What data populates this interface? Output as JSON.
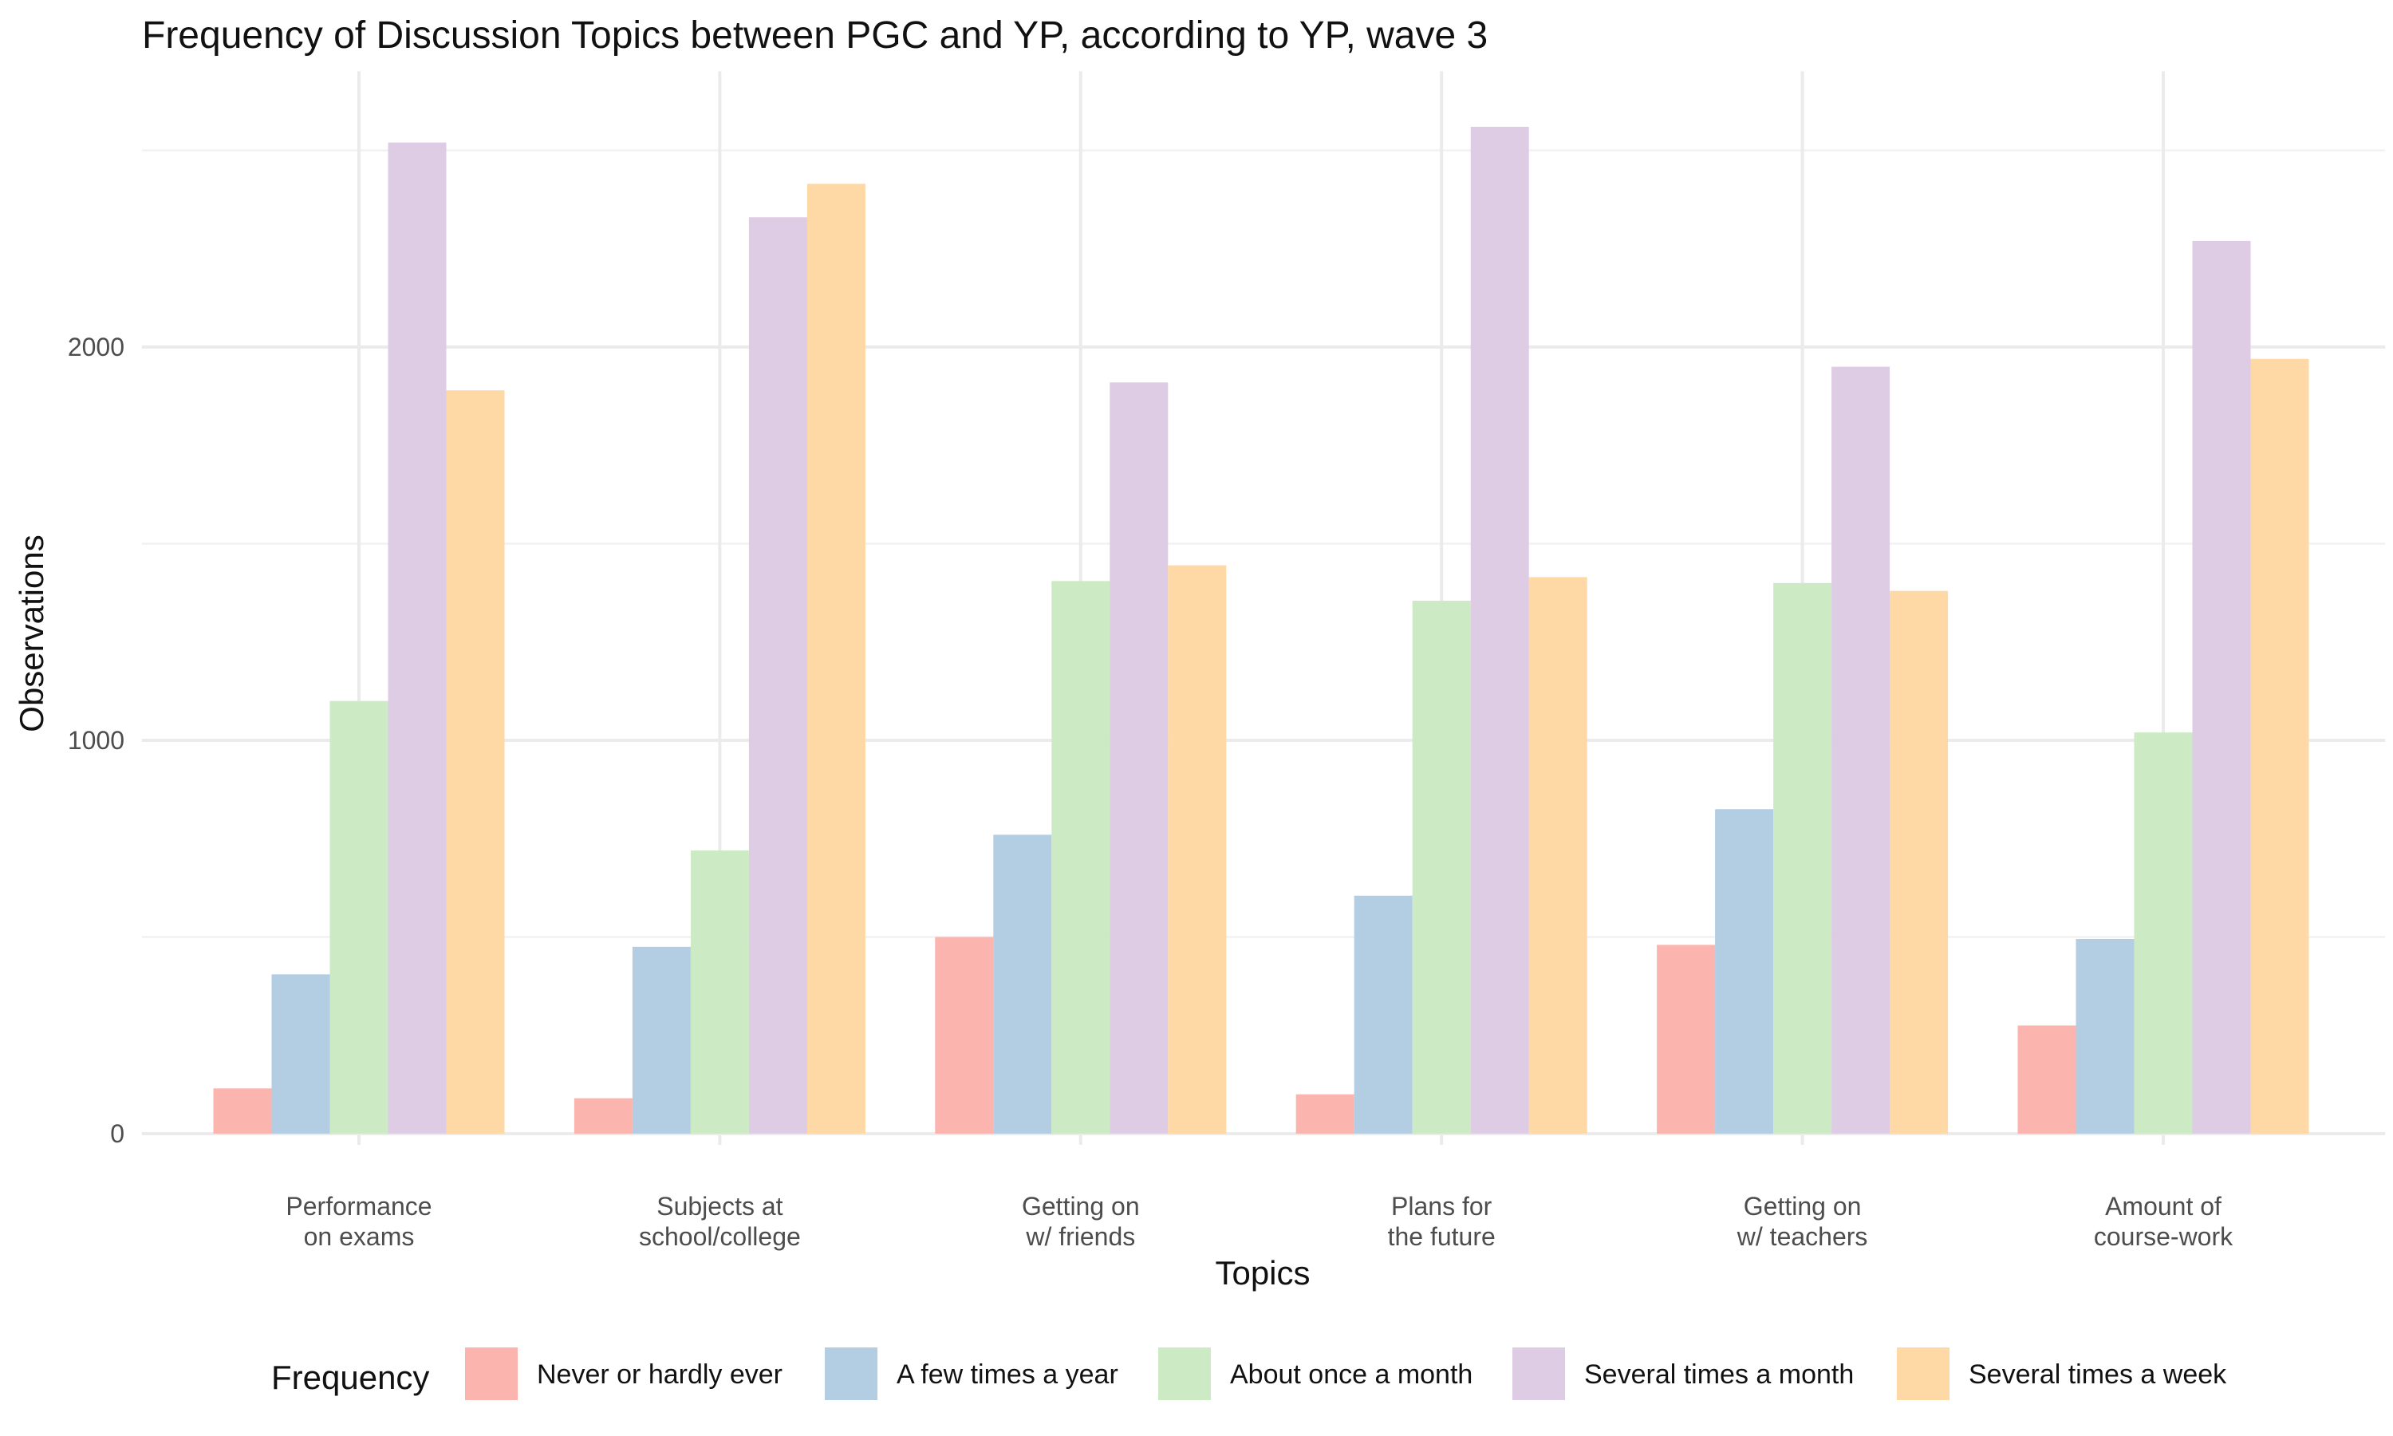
{
  "chart_data": {
    "type": "bar",
    "title": "Frequency of Discussion Topics between PGC and YP, according to YP, wave 3",
    "xlabel": "Topics",
    "ylabel": "Observations",
    "ylim": [
      0,
      2600
    ],
    "y_ticks": [
      0,
      1000,
      2000
    ],
    "grid": true,
    "legend_position": "bottom",
    "legend_title": "Frequency",
    "categories": [
      [
        "Performance",
        "on exams"
      ],
      [
        "Subjects at",
        "school/college"
      ],
      [
        "Getting on",
        "w/ friends"
      ],
      [
        "Plans for",
        "the future"
      ],
      [
        "Getting on",
        "w/ teachers"
      ],
      [
        "Amount of",
        "course-work"
      ]
    ],
    "series": [
      {
        "name": "Never or hardly ever",
        "color": "#FBB4AE",
        "values": [
          115,
          90,
          500,
          100,
          480,
          275
        ]
      },
      {
        "name": "A few times a year",
        "color": "#B3CDE3",
        "values": [
          405,
          475,
          760,
          605,
          825,
          495
        ]
      },
      {
        "name": "About once a month",
        "color": "#CCEBC5",
        "values": [
          1100,
          720,
          1405,
          1355,
          1400,
          1020
        ]
      },
      {
        "name": "Several times a month",
        "color": "#DECBE4",
        "values": [
          2520,
          2330,
          1910,
          2560,
          1950,
          2270
        ]
      },
      {
        "name": "Several times a week",
        "color": "#FED9A6",
        "values": [
          1890,
          2415,
          1445,
          1415,
          1380,
          1970
        ]
      }
    ]
  }
}
